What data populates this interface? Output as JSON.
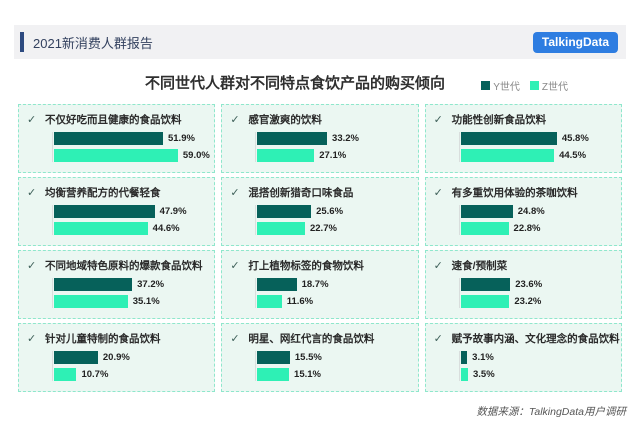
{
  "header": {
    "report_title": "2021新消费人群报告",
    "logo_text": "TalkingData"
  },
  "icons": {
    "check": "✓"
  },
  "colors": {
    "y_bar": "#06615a",
    "z_bar": "#2ef0b5",
    "panel_bg": "#ebf7f2",
    "panel_border": "#8fe7cc",
    "accent_bar": "#2d4a80",
    "logo_bg": "#2e7de1"
  },
  "chart_data": {
    "type": "bar",
    "orientation": "horizontal",
    "title": "不同世代人群对不同特点食饮产品的购买倾向",
    "unit": "%",
    "xlim": [
      0,
      60
    ],
    "legend_position": "top-right",
    "legend": [
      "Y世代",
      "Z世代"
    ],
    "categories": [
      "不仅好吃而且健康的食品饮料",
      "感官激爽的饮料",
      "功能性创新食品饮料",
      "均衡营养配方的代餐轻食",
      "混搭创新猎奇口味食品",
      "有多重饮用体验的茶咖饮料",
      "不同地域特色原料的爆款食品饮料",
      "打上植物标签的食物饮料",
      "速食/预制菜",
      "针对儿童特制的食品饮料",
      "明星、网红代言的食品饮料",
      "赋予故事内涵、文化理念的食品饮料"
    ],
    "series": [
      {
        "name": "Y世代",
        "color": "#06615a",
        "values": [
          51.9,
          33.2,
          45.8,
          47.9,
          25.6,
          24.8,
          37.2,
          18.7,
          23.6,
          20.9,
          15.5,
          3.1
        ]
      },
      {
        "name": "Z世代",
        "color": "#2ef0b5",
        "values": [
          59.0,
          27.1,
          44.5,
          44.6,
          22.7,
          22.8,
          35.1,
          11.6,
          23.2,
          10.7,
          15.1,
          3.5
        ]
      }
    ]
  },
  "footer": {
    "source": "数据来源：TalkingData用户调研"
  }
}
